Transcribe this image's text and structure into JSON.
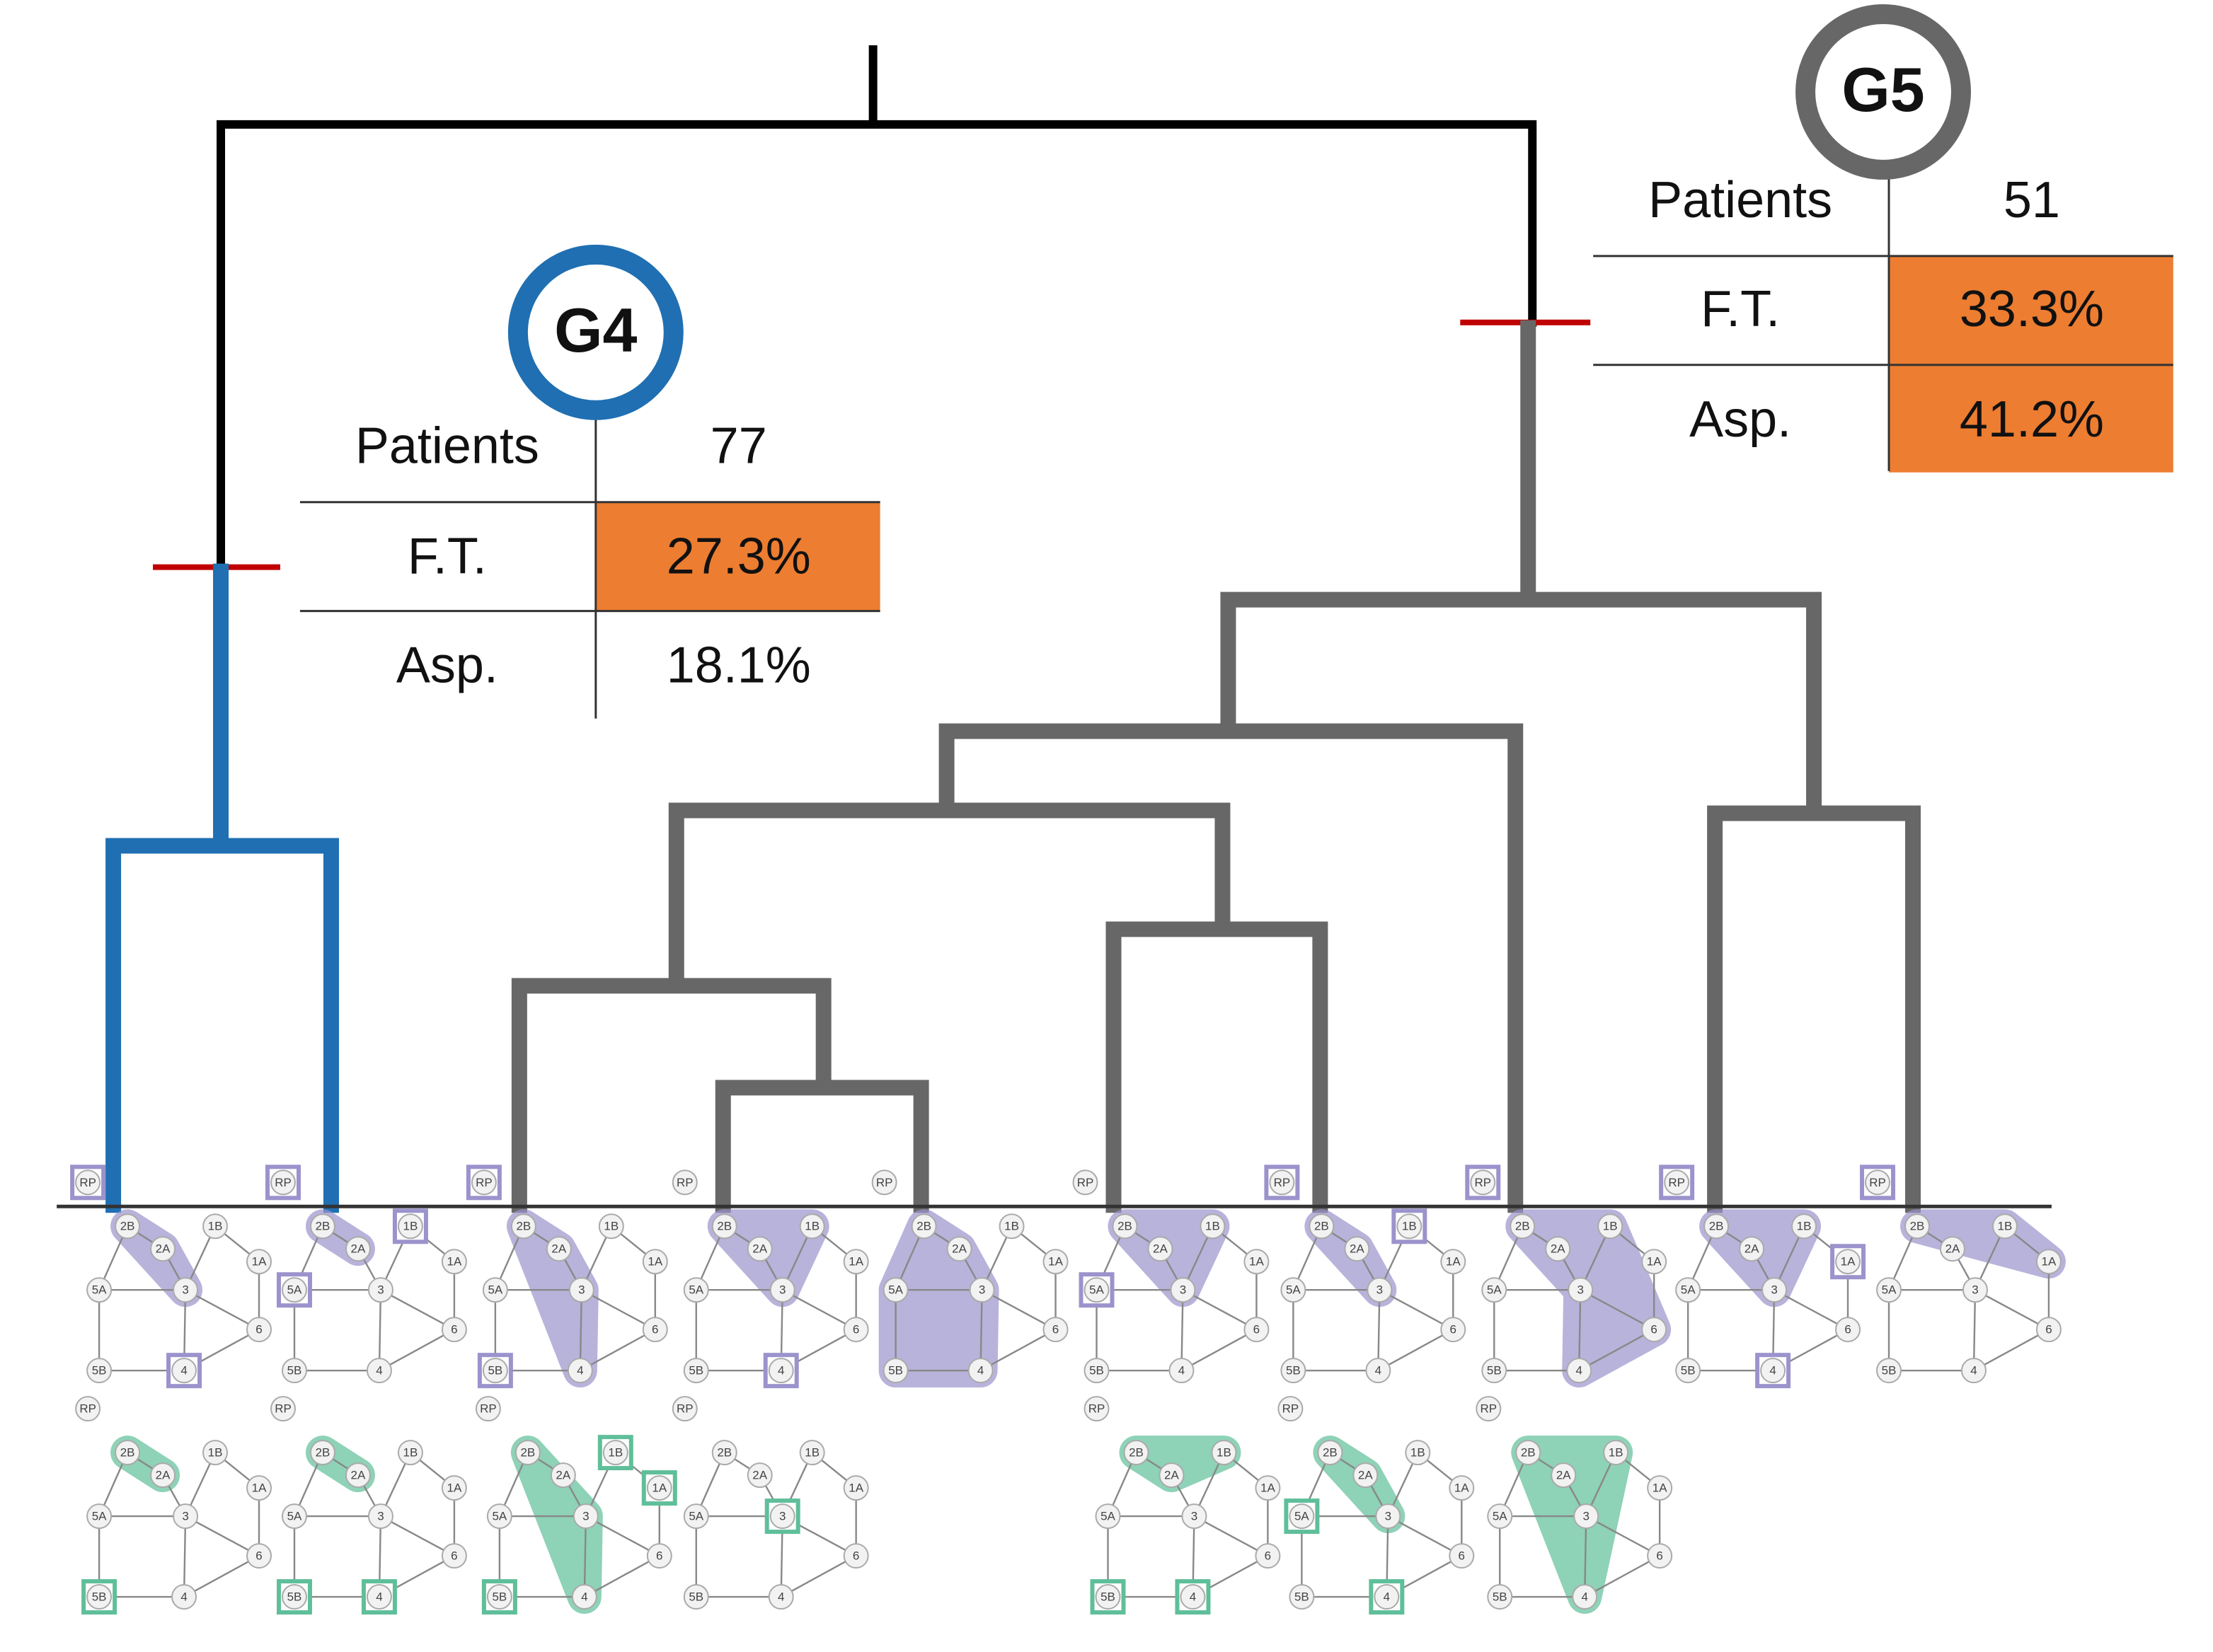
{
  "groups": [
    {
      "label": "G4",
      "color": "#1f6fb2",
      "rows": [
        {
          "label": "Patients",
          "value": "77",
          "highlighted": false
        },
        {
          "label": "F.T.",
          "value": "27.3%",
          "highlighted": true
        },
        {
          "label": "Asp.",
          "value": "18.1%",
          "highlighted": false
        }
      ]
    },
    {
      "label": "G5",
      "color": "#676767",
      "rows": [
        {
          "label": "Patients",
          "value": "51",
          "highlighted": false
        },
        {
          "label": "F.T.",
          "value": "33.3%",
          "highlighted": true
        },
        {
          "label": "Asp.",
          "value": "41.2%",
          "highlighted": true
        }
      ]
    }
  ],
  "highlight_color": "#ed7d31",
  "node_labels": [
    "2B",
    "2A",
    "1B",
    "1A",
    "5A",
    "3",
    "6",
    "5B",
    "4",
    "RP"
  ]
}
